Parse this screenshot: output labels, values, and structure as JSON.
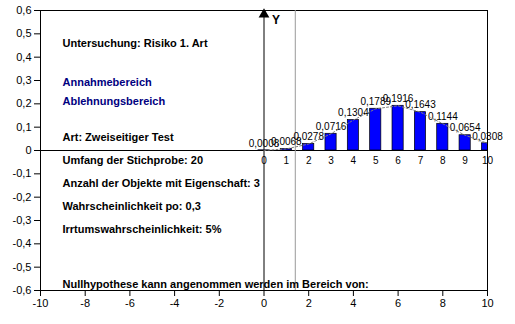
{
  "chart_data": {
    "type": "bar",
    "ylabel": "Y",
    "x": [
      0,
      1,
      2,
      3,
      4,
      5,
      6,
      7,
      8,
      9,
      10
    ],
    "series": [
      {
        "type": "bar",
        "color": "#0000ff",
        "values": [
          0.0008,
          0.0068,
          0.0278,
          0.0716,
          0.1304,
          0.1789,
          0.1916,
          0.1643,
          0.1144,
          0.0654,
          0.0308
        ],
        "value_labels": [
          "0,0008",
          "0,0068",
          "0,0278",
          "0,0716",
          "0,1304",
          "0,1789",
          "0,1916",
          "0,1643",
          "0,1144",
          "0,0654",
          "0,0308"
        ]
      },
      {
        "type": "line",
        "line_style": "dotted",
        "color": "#808080",
        "values": [
          0.0008,
          0.0068,
          0.0278,
          0.0716,
          0.1304,
          0.1789,
          0.1916,
          0.1643,
          0.1144,
          0.0654,
          0.0308
        ]
      }
    ],
    "data_labels": true,
    "reference_x": 1.4,
    "xlim": [
      -10,
      10
    ],
    "xticks": [
      -10,
      -8,
      -6,
      -4,
      -2,
      0,
      2,
      4,
      6,
      8,
      10
    ],
    "ylim": [
      -0.6,
      0.6
    ],
    "yticks": [
      {
        "value": -0.6,
        "label": "-0,6"
      },
      {
        "value": -0.5,
        "label": "-0,5"
      },
      {
        "value": -0.4,
        "label": "-0,4"
      },
      {
        "value": -0.3,
        "label": "-0,3"
      },
      {
        "value": -0.2,
        "label": "-0,2"
      },
      {
        "value": -0.1,
        "label": "-0,1"
      },
      0,
      {
        "value": 0.1,
        "label": "0,1"
      },
      {
        "value": 0.2,
        "label": "0,2"
      },
      {
        "value": 0.3,
        "label": "0,3"
      },
      {
        "value": 0.4,
        "label": "0,4"
      },
      {
        "value": 0.5,
        "label": "0,5"
      },
      {
        "value": 0.6,
        "label": "0,6"
      }
    ],
    "grid": false,
    "annotations": [
      {
        "text": "Untersuchung: Risiko 1. Art",
        "color": "#000000"
      },
      {
        "text": "Annahmebereich",
        "color": "#000080"
      },
      {
        "text": "Ablehnungsbereich",
        "color": "#000080"
      },
      {
        "text": "Art: Zweiseitiger Test",
        "color": "#000000"
      },
      {
        "text": "Umfang der Stichprobe: 20",
        "color": "#000000"
      },
      {
        "text": "Anzahl der Objekte mit Eigenschaft: 3",
        "color": "#000000"
      },
      {
        "text": "Wahrscheinlichkeit po: 0,3",
        "color": "#000000"
      },
      {
        "text": "Irrtumswahrscheinlichkeit: 5%",
        "color": "#000000"
      },
      {
        "text": "Nullhypothese kann angenommen werden im Bereich von:",
        "color": "#000000"
      }
    ]
  }
}
